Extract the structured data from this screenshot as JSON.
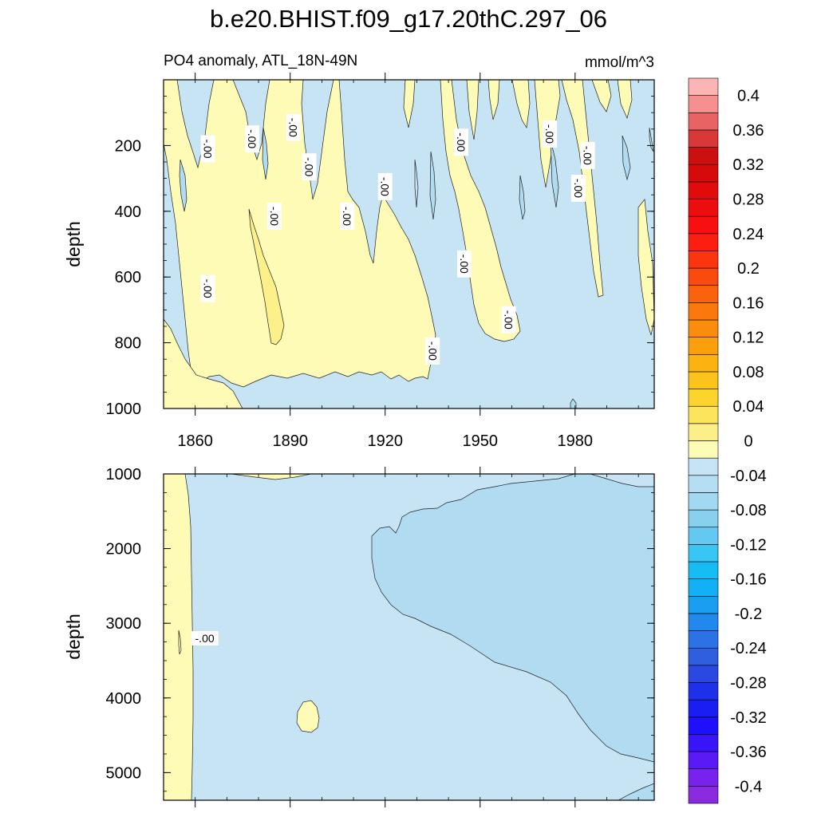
{
  "chart_data": {
    "type": "contour",
    "title": "b.e20.BHIST.f09_g17.20thC.297_06",
    "subtitle_left": "PO4 anomaly, ATL_18N-49N",
    "subtitle_right": "mmol/m^3",
    "colors": {
      "positive_fill": "#fdfbb5",
      "positive_strong_fill": "#fbf08a",
      "negative_fill": "#c6e4f4",
      "negative_strong_fill": "#b0dbf1",
      "contour_line": "#222222"
    },
    "upper_panel": {
      "ylabel": "depth",
      "y_range": [
        0,
        1000
      ],
      "y_reversed": true,
      "y_ticks": [
        200,
        400,
        600,
        800,
        1000
      ],
      "y_tick_labels": [
        "200",
        "400",
        "600",
        "800",
        "1000"
      ],
      "x_range": [
        1850,
        2005
      ],
      "x_ticks": [
        1860,
        1890,
        1920,
        1950,
        1980
      ],
      "x_tick_labels": [
        "1860",
        "1890",
        "1920",
        "1950",
        "1980"
      ],
      "contour_labels": [
        {
          "text": "-.00",
          "year": 1864,
          "depth": 210
        },
        {
          "text": "-.00",
          "year": 1878,
          "depth": 180
        },
        {
          "text": "-.00",
          "year": 1891,
          "depth": 145
        },
        {
          "text": "-.00",
          "year": 1896,
          "depth": 265
        },
        {
          "text": "-.00",
          "year": 1885,
          "depth": 415
        },
        {
          "text": "-.00",
          "year": 1908,
          "depth": 415
        },
        {
          "text": "-.00",
          "year": 1920,
          "depth": 325
        },
        {
          "text": "-.00",
          "year": 1944,
          "depth": 190
        },
        {
          "text": "-.00",
          "year": 1945,
          "depth": 560
        },
        {
          "text": "-.00",
          "year": 1959,
          "depth": 730
        },
        {
          "text": "-.00",
          "year": 1864,
          "depth": 635
        },
        {
          "text": "-.00",
          "year": 1935,
          "depth": 825
        },
        {
          "text": "-.00",
          "year": 1972,
          "depth": 165
        },
        {
          "text": "-.00",
          "year": 1984,
          "depth": 230
        },
        {
          "text": "-.00",
          "year": 1981,
          "depth": 330
        }
      ]
    },
    "lower_panel": {
      "ylabel": "depth",
      "y_range": [
        1000,
        5370
      ],
      "y_reversed": true,
      "y_ticks": [
        1000,
        2000,
        3000,
        4000,
        5000
      ],
      "y_tick_labels": [
        "1000",
        "2000",
        "3000",
        "4000",
        "5000"
      ],
      "x_range": [
        1850,
        2005
      ],
      "x_ticks": [
        1860,
        1890,
        1920,
        1950,
        1980
      ],
      "contour_labels": [
        {
          "text": "-.00",
          "year": 1863,
          "depth": 3200
        }
      ]
    },
    "colorbar": {
      "levels": [
        -0.42,
        -0.4,
        -0.38,
        -0.36,
        -0.34,
        -0.32,
        -0.3,
        -0.28,
        -0.26,
        -0.24,
        -0.22,
        -0.2,
        -0.18,
        -0.16,
        -0.14,
        -0.12,
        -0.1,
        -0.08,
        -0.06,
        -0.04,
        -0.02,
        0,
        0.02,
        0.04,
        0.06,
        0.08,
        0.1,
        0.12,
        0.14,
        0.16,
        0.18,
        0.2,
        0.22,
        0.24,
        0.26,
        0.28,
        0.3,
        0.32,
        0.34,
        0.36,
        0.38,
        0.4,
        0.42
      ],
      "label_values": [
        "-0.4",
        "-0.36",
        "-0.32",
        "-0.28",
        "-0.24",
        "-0.2",
        "-0.16",
        "-0.12",
        "-0.08",
        "-0.04",
        "0",
        "0.04",
        "0.08",
        "0.12",
        "0.16",
        "0.2",
        "0.24",
        "0.28",
        "0.32",
        "0.36",
        "0.4"
      ],
      "box_colors_bottom_to_top": [
        "#8a2be2",
        "#7722ee",
        "#5a1af5",
        "#3a14f8",
        "#1e10fa",
        "#1a1ef0",
        "#1e30e8",
        "#2a48e2",
        "#2f5ede",
        "#2a72e6",
        "#2288ee",
        "#1a9ef2",
        "#12b0f4",
        "#16bcf6",
        "#3ac6f4",
        "#64c8f0",
        "#88d0ee",
        "#a2d8f0",
        "#b6def2",
        "#c6e4f4",
        "#fdfbb5",
        "#fdef88",
        "#fce45c",
        "#fcd42e",
        "#fcc418",
        "#fcb210",
        "#fba00c",
        "#fb8c0c",
        "#fb780c",
        "#fb620c",
        "#fb4a0e",
        "#fc3410",
        "#fc1e10",
        "#f81010",
        "#ee0c0c",
        "#e20a0a",
        "#d60a0a",
        "#cc1010",
        "#d83838",
        "#e86464",
        "#f69090",
        "#fcb4b4"
      ]
    }
  }
}
